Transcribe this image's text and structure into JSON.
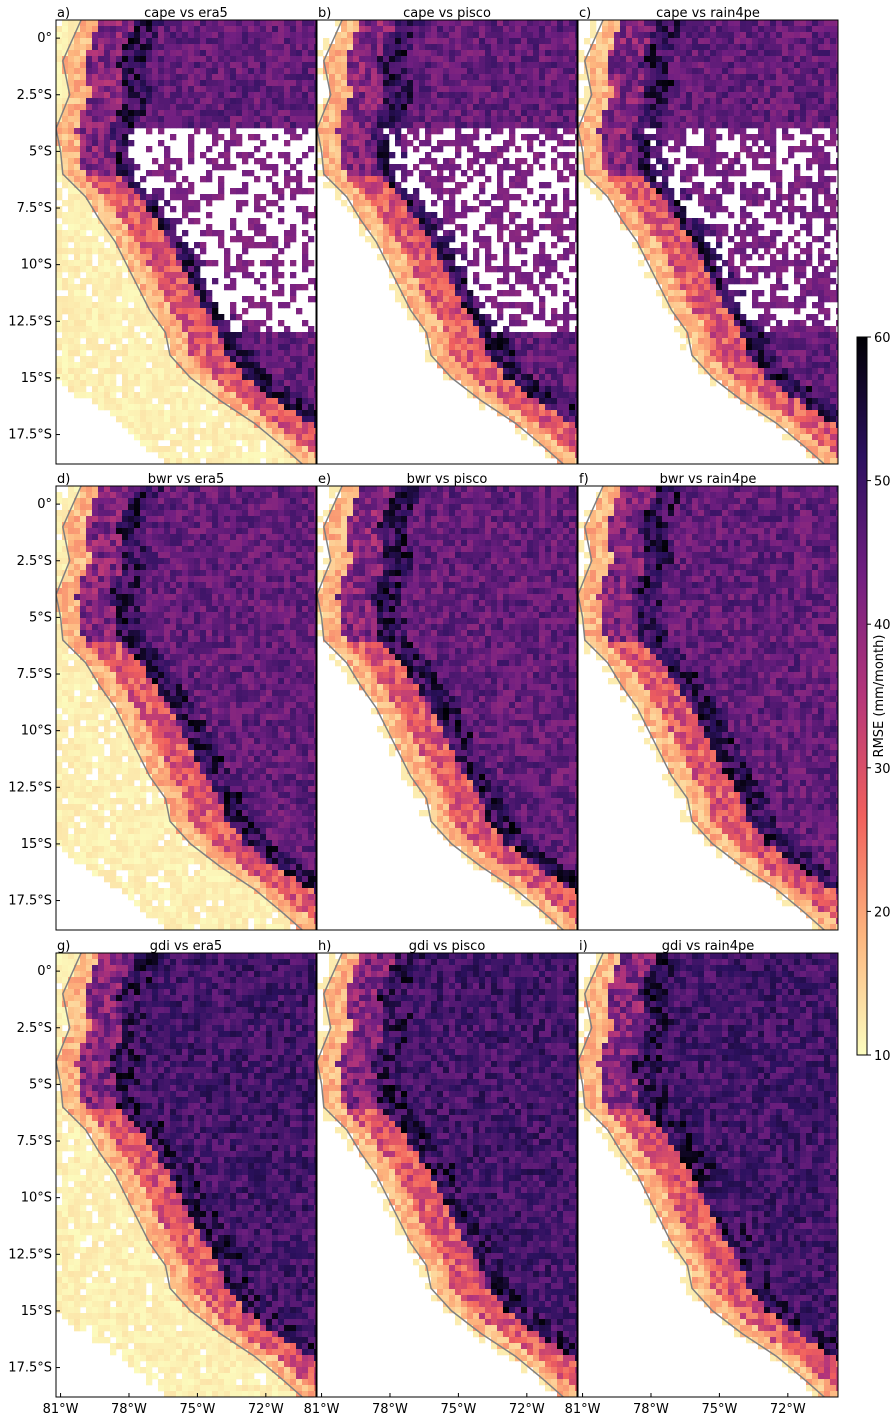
{
  "chart_data": {
    "type": "heatmap",
    "colorbar": {
      "label": "RMSE (mm/month)",
      "ticks": [
        10,
        20,
        30,
        40,
        50,
        60
      ],
      "range": [
        10,
        60
      ],
      "colormap": "magma_r"
    },
    "y_ticks": [
      "0°",
      "2.5°S",
      "5°S",
      "7.5°S",
      "10°S",
      "12.5°S",
      "15°S",
      "17.5°S"
    ],
    "x_ticks": [
      "81°W",
      "78°W",
      "75°W",
      "72°W"
    ],
    "lat_range": [
      0.8,
      -18.8
    ],
    "lon_range": [
      -81.2,
      -69.8
    ],
    "panels": [
      {
        "letter": "a)",
        "title": "cape vs era5"
      },
      {
        "letter": "b)",
        "title": "cape vs pisco"
      },
      {
        "letter": "c)",
        "title": "cape vs rain4pe"
      },
      {
        "letter": "d)",
        "title": "bwr vs era5"
      },
      {
        "letter": "e)",
        "title": "bwr vs pisco"
      },
      {
        "letter": "f)",
        "title": "bwr vs rain4pe"
      },
      {
        "letter": "g)",
        "title": "gdi vs era5"
      },
      {
        "letter": "h)",
        "title": "gdi vs pisco"
      },
      {
        "letter": "i)",
        "title": "gdi vs rain4pe"
      }
    ],
    "colors": {
      "border": "#808080",
      "stops": [
        "#fcfdbf",
        "#fdb57e",
        "#f1605d",
        "#b5367a",
        "#721f81",
        "#2c115f",
        "#000004"
      ]
    }
  }
}
